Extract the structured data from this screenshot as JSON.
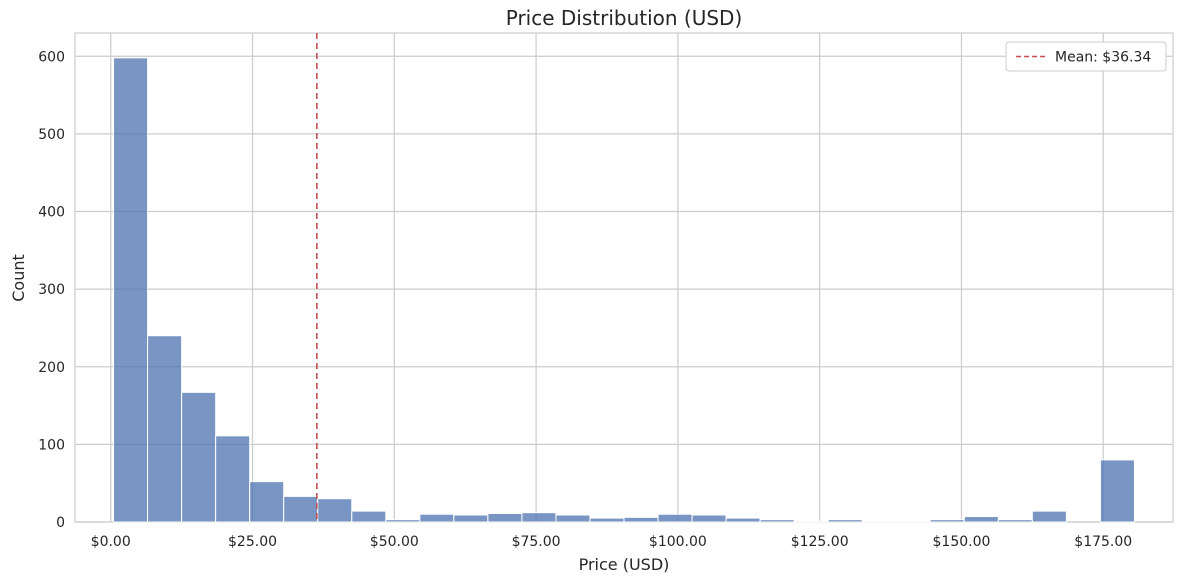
{
  "chart_data": {
    "type": "bar",
    "title": "Price Distribution (USD)",
    "xlabel": "Price (USD)",
    "ylabel": "Count",
    "xlim": [
      -6.3,
      187.3
    ],
    "ylim": [
      0,
      630
    ],
    "x_ticks": [
      {
        "value": 0,
        "label": "$0.00"
      },
      {
        "value": 25,
        "label": "$25.00"
      },
      {
        "value": 50,
        "label": "$50.00"
      },
      {
        "value": 75,
        "label": "$75.00"
      },
      {
        "value": 100,
        "label": "$100.00"
      },
      {
        "value": 125,
        "label": "$125.00"
      },
      {
        "value": 150,
        "label": "$150.00"
      },
      {
        "value": 175,
        "label": "$175.00"
      }
    ],
    "y_ticks": [
      {
        "value": 0,
        "label": "0"
      },
      {
        "value": 100,
        "label": "100"
      },
      {
        "value": 200,
        "label": "200"
      },
      {
        "value": 300,
        "label": "300"
      },
      {
        "value": 400,
        "label": "400"
      },
      {
        "value": 500,
        "label": "500"
      },
      {
        "value": 600,
        "label": "600"
      }
    ],
    "grid": true,
    "bins": [
      {
        "start": 0.5,
        "end": 6.5,
        "count": 598
      },
      {
        "start": 6.5,
        "end": 12.5,
        "count": 240
      },
      {
        "start": 12.5,
        "end": 18.5,
        "count": 167
      },
      {
        "start": 18.5,
        "end": 24.5,
        "count": 111
      },
      {
        "start": 24.5,
        "end": 30.5,
        "count": 52
      },
      {
        "start": 30.5,
        "end": 36.5,
        "count": 33
      },
      {
        "start": 36.5,
        "end": 42.5,
        "count": 30
      },
      {
        "start": 42.5,
        "end": 48.5,
        "count": 14
      },
      {
        "start": 48.5,
        "end": 54.5,
        "count": 3
      },
      {
        "start": 54.5,
        "end": 60.5,
        "count": 10
      },
      {
        "start": 60.5,
        "end": 66.5,
        "count": 9
      },
      {
        "start": 66.5,
        "end": 72.5,
        "count": 11
      },
      {
        "start": 72.5,
        "end": 78.5,
        "count": 12
      },
      {
        "start": 78.5,
        "end": 84.5,
        "count": 9
      },
      {
        "start": 84.5,
        "end": 90.5,
        "count": 5
      },
      {
        "start": 90.5,
        "end": 96.5,
        "count": 6
      },
      {
        "start": 96.5,
        "end": 102.5,
        "count": 10
      },
      {
        "start": 102.5,
        "end": 108.5,
        "count": 9
      },
      {
        "start": 108.5,
        "end": 114.5,
        "count": 5
      },
      {
        "start": 114.5,
        "end": 120.5,
        "count": 3
      },
      {
        "start": 120.5,
        "end": 126.5,
        "count": 1
      },
      {
        "start": 126.5,
        "end": 132.5,
        "count": 3
      },
      {
        "start": 132.5,
        "end": 138.5,
        "count": 1
      },
      {
        "start": 138.5,
        "end": 144.5,
        "count": 1
      },
      {
        "start": 144.5,
        "end": 150.5,
        "count": 3
      },
      {
        "start": 150.5,
        "end": 156.5,
        "count": 7
      },
      {
        "start": 156.5,
        "end": 162.5,
        "count": 3
      },
      {
        "start": 162.5,
        "end": 168.5,
        "count": 14
      },
      {
        "start": 168.5,
        "end": 174.5,
        "count": 0
      },
      {
        "start": 174.5,
        "end": 180.5,
        "count": 80
      }
    ],
    "mean_line": {
      "value": 36.34,
      "label": "Mean: $36.34",
      "color": "#c44e52",
      "style": "dashed"
    },
    "legend": {
      "position": "top-right"
    },
    "bar_color": "#4c72b0"
  }
}
